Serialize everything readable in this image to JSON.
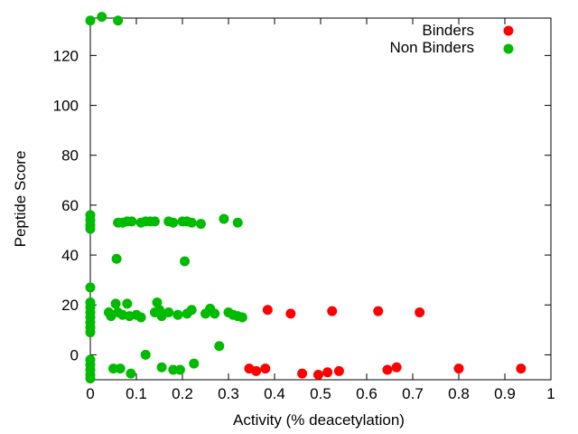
{
  "chart_data": {
    "type": "scatter",
    "title": "",
    "xlabel": "Activity (% deacetylation)",
    "ylabel": "Peptide Score",
    "xlim": [
      0,
      1
    ],
    "ylim": [
      -10,
      135
    ],
    "xticks": [
      0,
      0.1,
      0.2,
      0.3,
      0.4,
      0.5,
      0.6,
      0.7,
      0.8,
      0.9,
      1
    ],
    "xtick_labels": [
      "0",
      "0.1",
      "0.2",
      "0.3",
      "0.4",
      "0.5",
      "0.6",
      "0.7",
      "0.8",
      "0.9",
      "1"
    ],
    "yticks": [
      0,
      20,
      40,
      60,
      80,
      100,
      120
    ],
    "ytick_labels": [
      "0",
      "20",
      "40",
      "60",
      "80",
      "100",
      "120"
    ],
    "grid": false,
    "legend_position": "top-right",
    "series": [
      {
        "name": "Binders",
        "color": "#ff0000",
        "points": [
          [
            0.385,
            18.0
          ],
          [
            0.435,
            16.5
          ],
          [
            0.525,
            17.5
          ],
          [
            0.625,
            17.5
          ],
          [
            0.715,
            17.0
          ],
          [
            0.345,
            -5.5
          ],
          [
            0.36,
            -6.5
          ],
          [
            0.38,
            -5.5
          ],
          [
            0.46,
            -7.5
          ],
          [
            0.495,
            -8.0
          ],
          [
            0.515,
            -7.0
          ],
          [
            0.54,
            -6.5
          ],
          [
            0.645,
            -6.0
          ],
          [
            0.665,
            -5.0
          ],
          [
            0.8,
            -5.5
          ],
          [
            0.935,
            -5.5
          ]
        ]
      },
      {
        "name": "Non Binders",
        "color": "#00bb00",
        "points": [
          [
            0,
            134
          ],
          [
            0.025,
            135.5
          ],
          [
            0.06,
            134
          ],
          [
            0,
            56
          ],
          [
            0,
            54
          ],
          [
            0,
            52
          ],
          [
            0,
            50.5
          ],
          [
            0.06,
            53
          ],
          [
            0.07,
            53
          ],
          [
            0.08,
            53.5
          ],
          [
            0.09,
            53.5
          ],
          [
            0.11,
            53
          ],
          [
            0.12,
            53.5
          ],
          [
            0.13,
            53.5
          ],
          [
            0.14,
            53.5
          ],
          [
            0.17,
            53.5
          ],
          [
            0.18,
            53
          ],
          [
            0.2,
            53.5
          ],
          [
            0.21,
            53.5
          ],
          [
            0.22,
            53
          ],
          [
            0.24,
            52.5
          ],
          [
            0.29,
            54.5
          ],
          [
            0.32,
            53
          ],
          [
            0.057,
            38.5
          ],
          [
            0.205,
            37.5
          ],
          [
            0,
            27
          ],
          [
            0,
            21
          ],
          [
            0,
            19
          ],
          [
            0,
            17
          ],
          [
            0,
            15
          ],
          [
            0,
            13
          ],
          [
            0,
            11
          ],
          [
            0,
            9
          ],
          [
            0.04,
            17
          ],
          [
            0.045,
            15.5
          ],
          [
            0.055,
            20.5
          ],
          [
            0.06,
            17
          ],
          [
            0.07,
            16
          ],
          [
            0.08,
            20.5
          ],
          [
            0.085,
            15.5
          ],
          [
            0.1,
            16
          ],
          [
            0.11,
            15
          ],
          [
            0.14,
            17
          ],
          [
            0.145,
            21
          ],
          [
            0.15,
            18
          ],
          [
            0.155,
            15.5
          ],
          [
            0.17,
            17
          ],
          [
            0.19,
            16
          ],
          [
            0.21,
            16.5
          ],
          [
            0.22,
            18
          ],
          [
            0.25,
            16.5
          ],
          [
            0.26,
            18.5
          ],
          [
            0.27,
            16.5
          ],
          [
            0.3,
            17
          ],
          [
            0.31,
            16
          ],
          [
            0.32,
            15.5
          ],
          [
            0.33,
            15
          ],
          [
            0.28,
            3.5
          ],
          [
            0.12,
            0
          ],
          [
            0.225,
            -3.5
          ],
          [
            0,
            -2
          ],
          [
            0,
            -4
          ],
          [
            0,
            -6
          ],
          [
            0,
            -8
          ],
          [
            0,
            -9.5
          ],
          [
            0.05,
            -5.5
          ],
          [
            0.065,
            -5.5
          ],
          [
            0.088,
            -7.5
          ],
          [
            0.155,
            -5
          ],
          [
            0.18,
            -6
          ],
          [
            0.195,
            -6
          ]
        ]
      }
    ]
  }
}
